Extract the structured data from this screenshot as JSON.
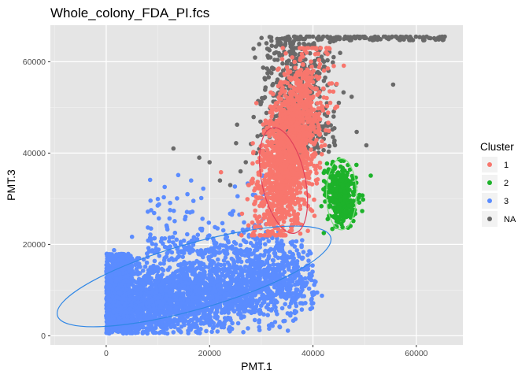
{
  "chart_data": {
    "type": "scatter",
    "title": "Whole_colony_FDA_PI.fcs",
    "xlabel": "PMT.1",
    "ylabel": "PMT.3",
    "xlim": [
      -10800,
      69000
    ],
    "ylim": [
      -2000,
      68000
    ],
    "x_ticks": [
      0,
      20000,
      40000,
      60000
    ],
    "x_tick_labels": [
      "0",
      "20000",
      "40000",
      "60000"
    ],
    "y_ticks": [
      0,
      20000,
      40000,
      60000
    ],
    "y_tick_labels": [
      "0",
      "20000",
      "40000",
      "60000"
    ],
    "grid": true,
    "background": "#e5e5e5",
    "legend": {
      "title": "Cluster",
      "placement": "right",
      "entries": [
        {
          "label": "1",
          "color": "#f8766d"
        },
        {
          "label": "2",
          "color": "#1db22a"
        },
        {
          "label": "3",
          "color": "#5b8cff"
        },
        {
          "label": "NA",
          "color": "#696969"
        }
      ]
    },
    "series": [
      {
        "cluster": "NA",
        "color": "#696969",
        "description_points": [
          [
            31000,
            45000
          ],
          [
            32500,
            48000
          ],
          [
            30500,
            52000
          ],
          [
            33000,
            55500
          ],
          [
            35000,
            60000
          ],
          [
            36500,
            63000
          ],
          [
            38000,
            65000
          ],
          [
            40000,
            65500
          ],
          [
            42000,
            65500
          ],
          [
            44000,
            64500
          ],
          [
            46000,
            65000
          ],
          [
            48000,
            65500
          ],
          [
            50000,
            65500
          ],
          [
            52000,
            65500
          ],
          [
            54000,
            65500
          ],
          [
            56000,
            65500
          ],
          [
            58000,
            65500
          ],
          [
            62000,
            65500
          ],
          [
            65000,
            65500
          ],
          [
            65500,
            65500
          ],
          [
            43000,
            58000
          ],
          [
            44500,
            55000
          ],
          [
            45000,
            51000
          ],
          [
            44000,
            48000
          ],
          [
            42000,
            45000
          ],
          [
            29000,
            40000
          ],
          [
            27000,
            38000
          ],
          [
            28000,
            42000
          ],
          [
            30000,
            44000
          ],
          [
            26000,
            36000
          ],
          [
            24000,
            33000
          ],
          [
            22000,
            34000
          ],
          [
            20000,
            38000
          ],
          [
            13000,
            41000
          ],
          [
            18000,
            39000
          ],
          [
            55500,
            55000
          ],
          [
            44000,
            61000
          ],
          [
            41000,
            62000
          ],
          [
            34000,
            57000
          ],
          [
            32000,
            50000
          ]
        ]
      },
      {
        "cluster": "1",
        "color": "#f8766d",
        "center": [
          35500,
          41000
        ],
        "spread": [
          2600,
          9000
        ],
        "correlation": 0.45,
        "ellipse": {
          "cx": 34300,
          "cy": 34000,
          "rx_data": 4200,
          "ry_data": 11800,
          "angle_deg": 12
        }
      },
      {
        "cluster": "2",
        "color": "#1db22a",
        "center": [
          45500,
          31000
        ],
        "spread": [
          1500,
          3200
        ],
        "correlation": 0.1,
        "ellipse": {
          "cx": 45500,
          "cy": 31000,
          "rx_data": 2900,
          "ry_data": 7800,
          "angle_deg": 0
        }
      },
      {
        "cluster": "3",
        "color": "#5b8cff",
        "center": [
          18000,
          11000
        ],
        "spread": [
          11000,
          5000
        ],
        "correlation": 0.45,
        "ellipse": {
          "cx": 17000,
          "cy": 13000,
          "rx_data": 27500,
          "ry_data": 7200,
          "angle_deg": 16
        }
      }
    ]
  }
}
